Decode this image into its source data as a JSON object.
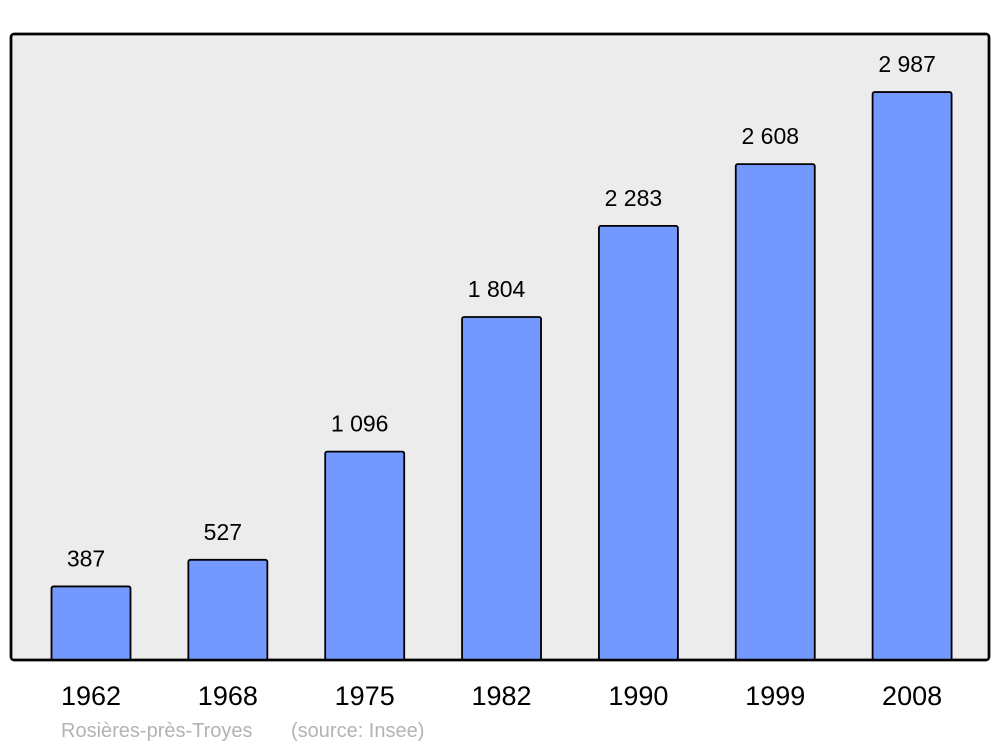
{
  "chart_data": {
    "type": "bar",
    "categories": [
      "1962",
      "1968",
      "1975",
      "1982",
      "1990",
      "1999",
      "2008"
    ],
    "values": [
      387,
      527,
      1096,
      1804,
      2283,
      2608,
      2987
    ],
    "value_labels": [
      "387",
      "527",
      "1 096",
      "1 804",
      "2 283",
      "2 608",
      "2 987"
    ],
    "ylim": [
      0,
      3287
    ],
    "grid": false,
    "caption": {
      "place": "Rosières-près-Troyes",
      "source": "(source: Insee)"
    },
    "colors": {
      "bar": "#7399ff",
      "plot_background": "#ececec",
      "caption": "#b3b3b3"
    }
  }
}
